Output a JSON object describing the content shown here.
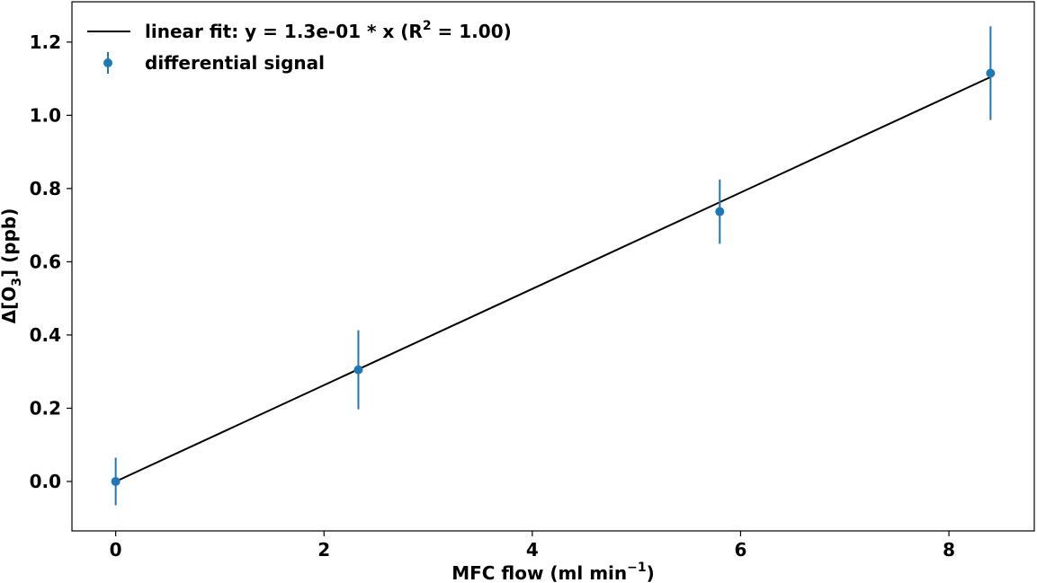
{
  "chart_data": {
    "type": "scatter",
    "xlabel_main": "MFC flow (ml min",
    "xlabel_sup": "−1",
    "xlabel_end": ")",
    "ylabel_main": "Δ[O",
    "ylabel_sub": "3",
    "ylabel_end": "] (ppb)",
    "xlim": [
      -0.42,
      8.82
    ],
    "ylim": [
      -0.135,
      1.31
    ],
    "xticks": [
      0,
      2,
      4,
      6,
      8
    ],
    "xtick_labels": [
      "0",
      "2",
      "4",
      "6",
      "8"
    ],
    "yticks": [
      0.0,
      0.2,
      0.4,
      0.6,
      0.8,
      1.0,
      1.2
    ],
    "ytick_labels": [
      "0.0",
      "0.2",
      "0.4",
      "0.6",
      "0.8",
      "1.0",
      "1.2"
    ],
    "grid": false,
    "legend_position": "top-left",
    "series": [
      {
        "name": "differential signal",
        "kind": "errorbar",
        "color": "#1f77b4",
        "x": [
          0.0,
          2.33,
          5.8,
          8.4
        ],
        "y": [
          0.0,
          0.305,
          0.737,
          1.115
        ],
        "yerr": [
          0.065,
          0.108,
          0.088,
          0.128
        ]
      },
      {
        "name": "linear fit",
        "kind": "line",
        "color": "#000000",
        "slope": 0.1315,
        "x": [
          0.0,
          8.4
        ]
      }
    ],
    "legend": {
      "fit_label_main": "linear fit: y = 1.3e-01 * x (R",
      "fit_label_sup": "2",
      "fit_label_end": " = 1.00)",
      "points_label": "differential signal"
    }
  }
}
